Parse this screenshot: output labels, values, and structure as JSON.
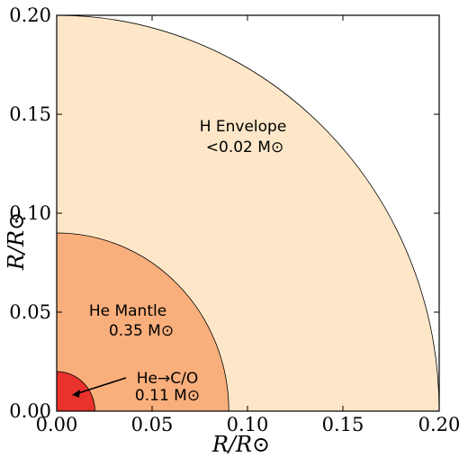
{
  "diagram": {
    "x_axis": {
      "label": "R/R⊙",
      "range": [
        0.0,
        0.2
      ],
      "ticks": [
        "0.00",
        "0.05",
        "0.10",
        "0.15",
        "0.20"
      ]
    },
    "y_axis": {
      "label": "R/R⊙",
      "range": [
        0.0,
        0.2
      ],
      "ticks": [
        "0.00",
        "0.05",
        "0.10",
        "0.15",
        "0.20"
      ]
    },
    "layers": [
      {
        "id": "envelope",
        "name": "H Envelope",
        "mass": "<0.02 M⊙",
        "outer_radius": 0.2,
        "color": "#fde7c8"
      },
      {
        "id": "mantle",
        "name": "He Mantle",
        "mass": "0.35 M⊙",
        "outer_radius": 0.09,
        "color": "#f9af7c"
      },
      {
        "id": "core",
        "name": "He→C/O",
        "mass": "0.11 M⊙",
        "outer_radius": 0.02,
        "color": "#e8322b"
      }
    ]
  }
}
